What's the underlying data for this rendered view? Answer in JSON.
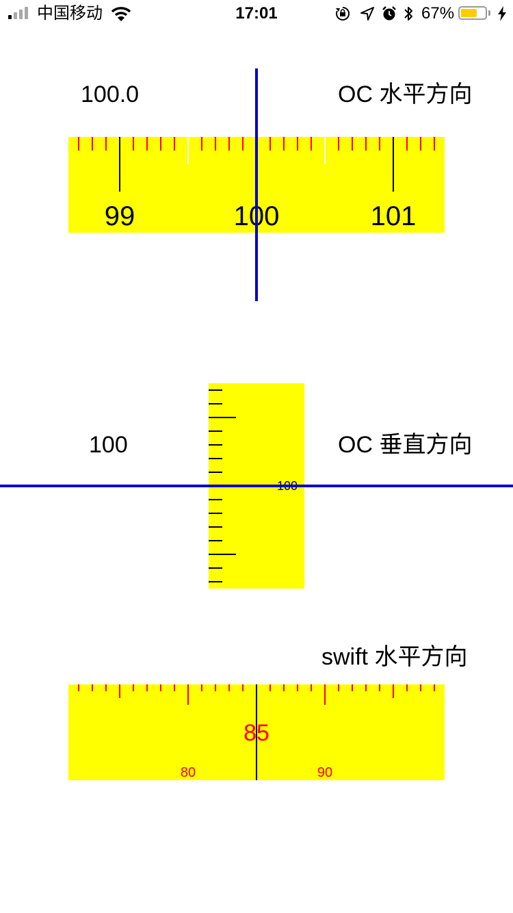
{
  "status_bar": {
    "carrier": "中国移动",
    "time": "17:01",
    "battery_percent": "67%",
    "battery_level": 0.67,
    "signal_bars": 4,
    "signal_active": 1,
    "icons": [
      "wifi-icon",
      "orientation-lock-icon",
      "location-arrow-icon",
      "alarm-icon",
      "bluetooth-icon",
      "charging-bolt-icon"
    ]
  },
  "colors": {
    "ruler_bg": "#ffff00",
    "indicator": "#0000cc",
    "swift_tick": "#ff0000",
    "oc_minor_tick": "#ff0000",
    "battery_fill": "#ffcc00"
  },
  "oc_horizontal": {
    "title": "OC 水平方向",
    "value_label": "100.0",
    "current_value": 100.0,
    "visible_range": [
      98.4,
      101.4
    ],
    "major_labels": [
      "99",
      "100",
      "101"
    ]
  },
  "oc_vertical": {
    "title": "OC 垂直方向",
    "value_label": "100",
    "current_value": 100,
    "visible_range": [
      95,
      110
    ],
    "major_labels": [
      "100"
    ]
  },
  "swift_horizontal": {
    "title": "swift 水平方向",
    "value_label": "85",
    "current_value": 85,
    "visible_range": [
      72,
      99
    ],
    "major_labels": [
      "80",
      "90"
    ]
  }
}
